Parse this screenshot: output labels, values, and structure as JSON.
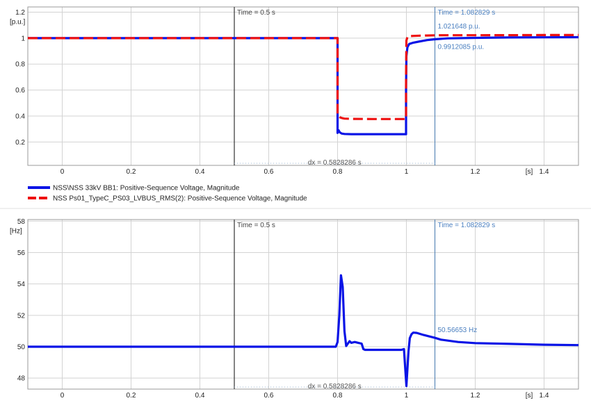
{
  "chart_data": [
    {
      "type": "line",
      "title": "",
      "ylabel": "[p.u.]",
      "xlabel": "[s]",
      "xlim": [
        -0.1,
        1.5
      ],
      "ylim": [
        0.02,
        1.24
      ],
      "xticks": [
        0,
        0.2,
        0.4,
        0.6,
        0.8,
        1,
        1.2,
        1.4
      ],
      "xtick_labels": [
        "0",
        "0.2",
        "0.4",
        "0.6",
        "0.8",
        "1",
        "1.2",
        "1.4"
      ],
      "yticks": [
        0.2,
        0.4,
        0.6,
        0.8,
        1,
        1.2
      ],
      "ytick_labels": [
        "0.2",
        "0.4",
        "0.6",
        "0.8",
        "1",
        "1.2"
      ],
      "grid": true,
      "legend_position": "below",
      "series": [
        {
          "name": "NSS\\NSS 33kV BB1: Positive-Sequence Voltage, Magnitude",
          "color": "#0a14e6",
          "dash": "solid",
          "x": [
            -0.1,
            0.8,
            0.8,
            0.803,
            0.806,
            0.812,
            0.82,
            0.84,
            0.9,
            0.95,
            0.999,
            0.999,
            1.0,
            1.003,
            1.008,
            1.02,
            1.04,
            1.06,
            1.0828,
            1.12,
            1.2,
            1.3,
            1.4,
            1.5
          ],
          "y": [
            1.0,
            1.0,
            0.27,
            0.29,
            0.275,
            0.265,
            0.262,
            0.26,
            0.26,
            0.26,
            0.26,
            0.6,
            0.86,
            0.93,
            0.955,
            0.965,
            0.975,
            0.985,
            0.9912,
            0.998,
            1.002,
            1.005,
            1.006,
            1.007
          ]
        },
        {
          "name": "NSS Ps01_TypeC_PS03_LVBUS_RMS(2): Positive-Sequence Voltage, Magnitude",
          "color": "#ee1111",
          "dash": "dashed",
          "x": [
            -0.1,
            0.8,
            0.8,
            0.803,
            0.807,
            0.812,
            0.82,
            0.84,
            0.9,
            0.95,
            0.999,
            0.999,
            1.0,
            1.003,
            1.008,
            1.02,
            1.04,
            1.06,
            1.0828,
            1.12,
            1.2,
            1.3,
            1.4,
            1.5
          ],
          "y": [
            1.0,
            1.0,
            0.41,
            0.4,
            0.39,
            0.385,
            0.38,
            0.378,
            0.377,
            0.377,
            0.377,
            0.7,
            0.98,
            1.01,
            1.015,
            1.017,
            1.019,
            1.02,
            1.0216,
            1.022,
            1.022,
            1.023,
            1.024,
            1.024
          ]
        }
      ],
      "cursors": [
        {
          "x": 0.5,
          "label": "Time = 0.5 s",
          "color": "#333333"
        },
        {
          "x": 1.082829,
          "label": "Time = 1.082829 s",
          "color": "#5a88b8"
        }
      ],
      "annotations": [
        {
          "text": "1.021648 p.u.",
          "x": 1.0828,
          "y": 1.0216,
          "color": "#4a7fc0"
        },
        {
          "text": "0.9912085 p.u.",
          "x": 1.0828,
          "y": 0.9912,
          "color": "#4a7fc0"
        },
        {
          "text": "dx = 0.5828286 s",
          "color": "#555555"
        }
      ]
    },
    {
      "type": "line",
      "title": "",
      "ylabel": "[Hz]",
      "xlabel": "[s]",
      "xlim": [
        -0.1,
        1.5
      ],
      "ylim": [
        47.3,
        58.1
      ],
      "xticks": [
        0,
        0.2,
        0.4,
        0.6,
        0.8,
        1,
        1.2,
        1.4
      ],
      "xtick_labels": [
        "0",
        "0.2",
        "0.4",
        "0.6",
        "0.8",
        "1",
        "1.2",
        "1.4"
      ],
      "yticks": [
        48,
        50,
        52,
        54,
        56,
        58
      ],
      "ytick_labels": [
        "48",
        "50",
        "52",
        "54",
        "56",
        "58"
      ],
      "grid": true,
      "series": [
        {
          "name": "",
          "color": "#0a14e6",
          "dash": "solid",
          "x": [
            -0.1,
            0.795,
            0.8,
            0.805,
            0.81,
            0.815,
            0.82,
            0.825,
            0.83,
            0.835,
            0.84,
            0.85,
            0.86,
            0.87,
            0.875,
            0.88,
            0.89,
            0.9,
            0.95,
            0.985,
            0.993,
            0.997,
            1.0,
            1.003,
            1.006,
            1.01,
            1.015,
            1.02,
            1.03,
            1.05,
            1.0828,
            1.1,
            1.15,
            1.2,
            1.3,
            1.4,
            1.5
          ],
          "y": [
            50.0,
            50.0,
            50.3,
            52.0,
            54.55,
            53.8,
            51.0,
            50.05,
            50.2,
            50.35,
            50.25,
            50.3,
            50.25,
            50.2,
            49.85,
            49.8,
            49.8,
            49.8,
            49.8,
            49.8,
            49.85,
            48.5,
            47.5,
            48.6,
            49.7,
            50.55,
            50.8,
            50.9,
            50.88,
            50.75,
            50.5665,
            50.45,
            50.3,
            50.23,
            50.18,
            50.13,
            50.1
          ]
        }
      ],
      "cursors": [
        {
          "x": 0.5,
          "label": "Time = 0.5 s",
          "color": "#333333"
        },
        {
          "x": 1.082829,
          "label": "Time = 1.082829 s",
          "color": "#5a88b8"
        }
      ],
      "annotations": [
        {
          "text": "50.56653 Hz",
          "x": 1.0828,
          "y": 50.5665,
          "color": "#4a7fc0"
        },
        {
          "text": "dx = 0.5828286 s",
          "color": "#555555"
        }
      ]
    }
  ]
}
